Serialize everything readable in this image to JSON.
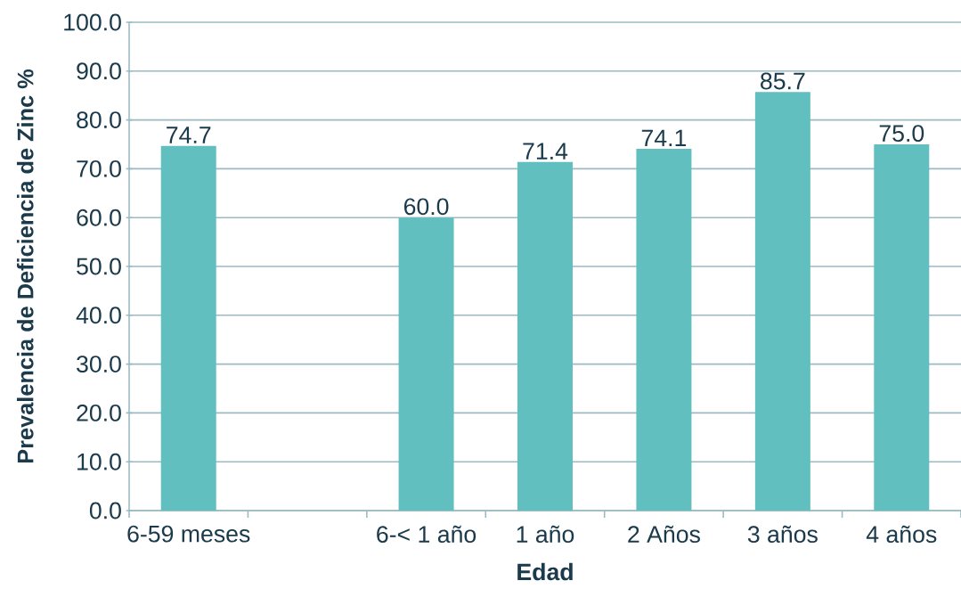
{
  "chart_data": {
    "type": "bar",
    "xlabel": "Edad",
    "ylabel": "Prevalencia de Deficiencia de Zinc %",
    "categories": [
      "6-59 meses",
      null,
      "6-< 1 año",
      "1 año",
      "2 Años",
      "3 años",
      "4 años"
    ],
    "values": [
      74.7,
      null,
      60.0,
      71.4,
      74.1,
      85.7,
      75.0
    ],
    "value_labels": [
      "74.7",
      null,
      "60.0",
      "71.4",
      "74.1",
      "85.7",
      "75.0"
    ],
    "color": "#62bfbf",
    "ylim": [
      0,
      100
    ],
    "yticks": [
      {
        "value": 0,
        "label": "0.0"
      },
      {
        "value": 10,
        "label": "10.0"
      },
      {
        "value": 20,
        "label": "20.0"
      },
      {
        "value": 30,
        "label": "30.0"
      },
      {
        "value": 40,
        "label": "40.0"
      },
      {
        "value": 50,
        "label": "50.0"
      },
      {
        "value": 60,
        "label": "60.0"
      },
      {
        "value": 70,
        "label": "70.0"
      },
      {
        "value": 80,
        "label": "80.0"
      },
      {
        "value": 90,
        "label": "90.0"
      },
      {
        "value": 100,
        "label": "100.0"
      }
    ],
    "grid": "y"
  }
}
